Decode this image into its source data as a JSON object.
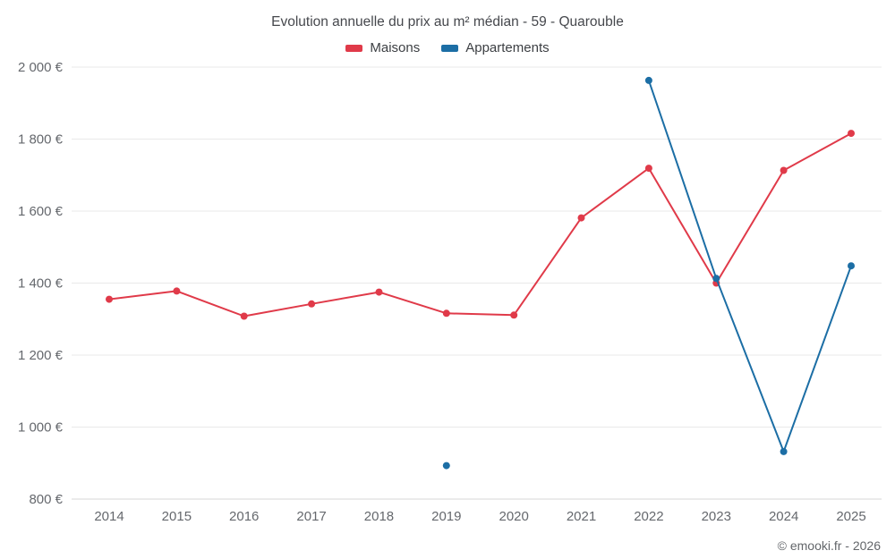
{
  "header": {
    "title": "Evolution annuelle du prix au m² médian - 59 - Quarouble"
  },
  "legend": [
    {
      "label": "Maisons",
      "color": "#e03a49"
    },
    {
      "label": "Appartements",
      "color": "#1c6ea5"
    }
  ],
  "footer": {
    "credit": "© emooki.fr - 2026"
  },
  "chart_data": {
    "type": "line",
    "title": "Evolution annuelle du prix au m² médian - 59 - Quarouble",
    "xlabel": "",
    "ylabel": "",
    "x": [
      2014,
      2015,
      2016,
      2017,
      2018,
      2019,
      2020,
      2021,
      2022,
      2023,
      2024,
      2025
    ],
    "series": [
      {
        "name": "Maisons",
        "color": "#e03a49",
        "values": [
          1355,
          1378,
          1308,
          1342,
          1375,
          1316,
          1311,
          1581,
          1719,
          1400,
          1713,
          1816
        ]
      },
      {
        "name": "Appartements",
        "color": "#1c6ea5",
        "values": [
          null,
          null,
          null,
          null,
          null,
          893,
          null,
          null,
          1963,
          1413,
          932,
          1448
        ]
      }
    ],
    "ylim": [
      800,
      2000
    ],
    "yticks": [
      {
        "value": 800,
        "label": "800 €"
      },
      {
        "value": 1000,
        "label": "1 000 €"
      },
      {
        "value": 1200,
        "label": "1 200 €"
      },
      {
        "value": 1400,
        "label": "1 400 €"
      },
      {
        "value": 1600,
        "label": "1 600 €"
      },
      {
        "value": 1800,
        "label": "1 800 €"
      },
      {
        "value": 2000,
        "label": "2 000 €"
      }
    ],
    "grid": "horizontal",
    "legend_position": "top"
  }
}
